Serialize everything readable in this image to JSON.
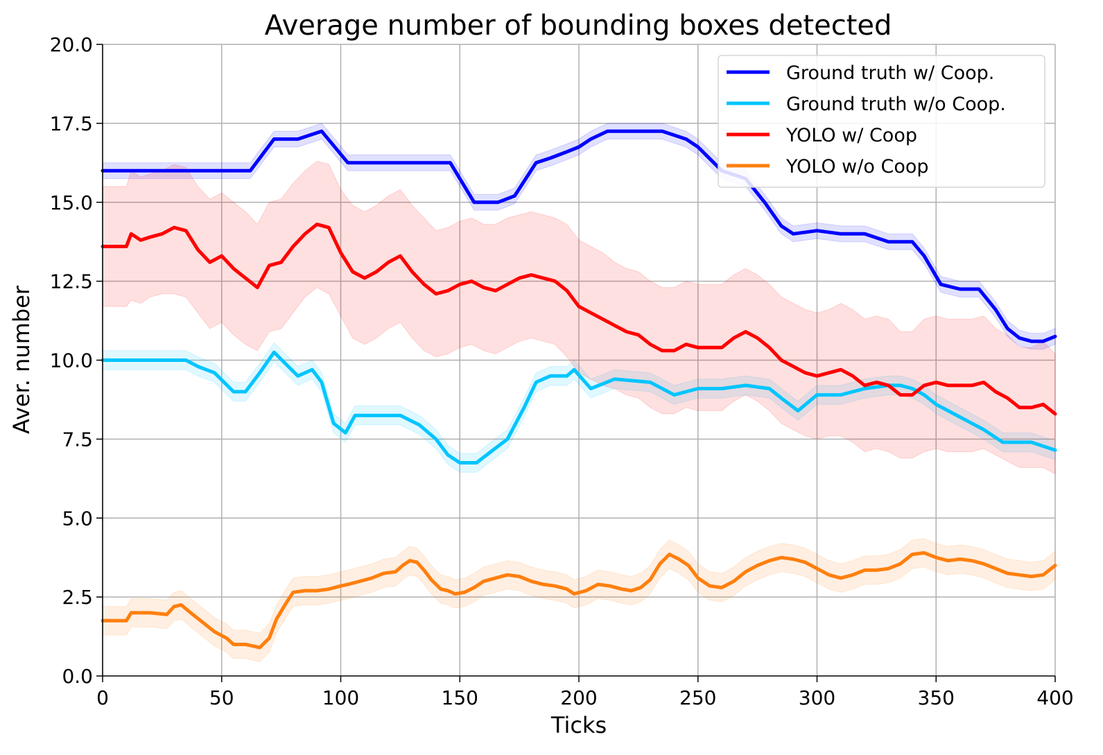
{
  "chart_data": {
    "type": "line",
    "title": "Average number of bounding boxes detected",
    "xlabel": "Ticks",
    "ylabel": "Aver. number",
    "xlim": [
      0,
      400
    ],
    "ylim": [
      0,
      20
    ],
    "xticks": [
      0,
      50,
      100,
      150,
      200,
      250,
      300,
      350,
      400
    ],
    "yticks": [
      0,
      2.5,
      5,
      7.5,
      10,
      12.5,
      15,
      17.5,
      20
    ],
    "xtick_labels": [
      "0",
      "50",
      "100",
      "150",
      "200",
      "250",
      "300",
      "350",
      "400"
    ],
    "ytick_labels": [
      "0.0",
      "2.5",
      "5.0",
      "7.5",
      "10.0",
      "12.5",
      "15.0",
      "17.5",
      "20.0"
    ],
    "grid": true,
    "legend_position": "top-right",
    "series": [
      {
        "name": "Ground truth w/ Coop.",
        "color": "#0000ff",
        "x": [
          0,
          62,
          72,
          82,
          92,
          103,
          146,
          156,
          166,
          173,
          182,
          188,
          195,
          200,
          205,
          212,
          235,
          245,
          250,
          260,
          270,
          278,
          285,
          290,
          300,
          310,
          320,
          330,
          340,
          345,
          352,
          360,
          368,
          375,
          380,
          385,
          390,
          395,
          400
        ],
        "y": [
          16,
          16,
          17,
          17,
          17.25,
          16.25,
          16.25,
          15,
          15,
          15.2,
          16.25,
          16.4,
          16.6,
          16.75,
          17,
          17.25,
          17.25,
          17,
          16.75,
          16,
          15.75,
          15,
          14.25,
          14,
          14.1,
          14,
          14,
          13.75,
          13.75,
          13.3,
          12.4,
          12.25,
          12.25,
          11.6,
          11,
          10.7,
          10.6,
          10.6,
          10.75
        ],
        "band": 0.25
      },
      {
        "name": "Ground truth w/o Coop.",
        "color": "#00c5ff",
        "x": [
          0,
          35,
          40,
          47,
          55,
          60,
          66,
          72,
          78,
          82,
          88,
          92,
          97,
          102,
          106,
          125,
          133,
          140,
          145,
          150,
          157,
          163,
          170,
          177,
          182,
          188,
          195,
          198,
          205,
          215,
          230,
          240,
          250,
          260,
          270,
          280,
          285,
          292,
          300,
          310,
          320,
          330,
          335,
          340,
          345,
          350,
          360,
          370,
          378,
          390,
          400
        ],
        "y": [
          10,
          10,
          9.8,
          9.6,
          9,
          9,
          9.6,
          10.25,
          9.8,
          9.5,
          9.7,
          9.3,
          8,
          7.7,
          8.25,
          8.25,
          7.95,
          7.5,
          7,
          6.75,
          6.75,
          7.1,
          7.5,
          8.5,
          9.3,
          9.5,
          9.5,
          9.7,
          9.1,
          9.4,
          9.3,
          8.9,
          9.1,
          9.1,
          9.2,
          9.1,
          8.8,
          8.4,
          8.9,
          8.9,
          9.1,
          9.2,
          9.2,
          9.1,
          8.9,
          8.6,
          8.2,
          7.8,
          7.4,
          7.4,
          7.15
        ],
        "band": 0.3
      },
      {
        "name": "YOLO w/ Coop",
        "color": "#ff0000",
        "x": [
          0,
          10,
          12,
          16,
          20,
          25,
          30,
          35,
          40,
          45,
          50,
          55,
          60,
          65,
          70,
          75,
          80,
          85,
          90,
          95,
          100,
          105,
          110,
          115,
          120,
          125,
          130,
          135,
          140,
          145,
          150,
          155,
          160,
          165,
          170,
          175,
          180,
          185,
          190,
          195,
          200,
          205,
          210,
          215,
          220,
          225,
          230,
          235,
          240,
          245,
          250,
          255,
          260,
          265,
          270,
          275,
          280,
          285,
          290,
          295,
          300,
          305,
          310,
          315,
          320,
          325,
          330,
          335,
          340,
          345,
          350,
          355,
          360,
          365,
          370,
          375,
          380,
          385,
          390,
          395,
          400
        ],
        "y": [
          13.6,
          13.6,
          14,
          13.8,
          13.9,
          14,
          14.2,
          14.1,
          13.5,
          13.1,
          13.3,
          12.9,
          12.6,
          12.3,
          13.0,
          13.1,
          13.6,
          14.0,
          14.3,
          14.2,
          13.4,
          12.8,
          12.6,
          12.8,
          13.1,
          13.3,
          12.8,
          12.4,
          12.1,
          12.2,
          12.4,
          12.5,
          12.3,
          12.2,
          12.4,
          12.6,
          12.7,
          12.6,
          12.5,
          12.2,
          11.7,
          11.5,
          11.3,
          11.1,
          10.9,
          10.8,
          10.5,
          10.3,
          10.3,
          10.5,
          10.4,
          10.4,
          10.4,
          10.7,
          10.9,
          10.7,
          10.4,
          10.0,
          9.8,
          9.6,
          9.5,
          9.6,
          9.7,
          9.5,
          9.2,
          9.3,
          9.2,
          8.9,
          8.9,
          9.2,
          9.3,
          9.2,
          9.2,
          9.2,
          9.3,
          9.0,
          8.8,
          8.5,
          8.5,
          8.6,
          8.3
        ],
        "band_low": [
          11.7,
          11.7,
          11.9,
          11.8,
          12.0,
          12.1,
          12.1,
          12.0,
          11.5,
          11.0,
          11.2,
          10.8,
          10.5,
          10.3,
          10.9,
          11.0,
          11.5,
          12.0,
          12.3,
          12.1,
          11.4,
          10.7,
          10.5,
          10.7,
          11.0,
          11.2,
          10.7,
          10.3,
          10.1,
          10.2,
          10.4,
          10.5,
          10.3,
          10.2,
          10.4,
          10.6,
          10.7,
          10.6,
          10.5,
          10.1,
          9.6,
          9.4,
          9.2,
          9.1,
          8.9,
          8.8,
          8.5,
          8.3,
          8.3,
          8.5,
          8.4,
          8.4,
          8.4,
          8.7,
          8.9,
          8.7,
          8.4,
          8.0,
          7.8,
          7.6,
          7.5,
          7.6,
          7.6,
          7.4,
          7.1,
          7.2,
          7.1,
          6.9,
          6.9,
          7.1,
          7.2,
          7.1,
          7.1,
          7.1,
          7.2,
          7.0,
          6.8,
          6.6,
          6.6,
          6.6,
          6.4
        ],
        "band_high": [
          15.5,
          15.5,
          16.0,
          15.8,
          15.9,
          16.0,
          16.2,
          16.1,
          15.5,
          15.1,
          15.3,
          15.0,
          14.7,
          14.3,
          15.0,
          15.1,
          15.6,
          16.0,
          16.3,
          16.2,
          15.4,
          14.9,
          14.7,
          14.9,
          15.2,
          15.4,
          14.9,
          14.5,
          14.1,
          14.2,
          14.4,
          14.5,
          14.3,
          14.3,
          14.5,
          14.6,
          14.7,
          14.6,
          14.5,
          14.3,
          13.8,
          13.6,
          13.4,
          13.1,
          12.9,
          12.8,
          12.5,
          12.3,
          12.3,
          12.5,
          12.4,
          12.4,
          12.4,
          12.7,
          12.9,
          12.7,
          12.4,
          12.0,
          11.8,
          11.6,
          11.5,
          11.6,
          11.8,
          11.6,
          11.3,
          11.4,
          11.3,
          10.9,
          10.9,
          11.3,
          11.4,
          11.3,
          11.3,
          11.3,
          11.4,
          11.0,
          10.8,
          10.4,
          10.4,
          10.6,
          10.2
        ]
      },
      {
        "name": "YOLO w/o Coop",
        "color": "#ff7f0e",
        "x": [
          0,
          10,
          12,
          20,
          27,
          30,
          33,
          37,
          42,
          47,
          52,
          55,
          60,
          63,
          66,
          70,
          73,
          77,
          80,
          85,
          90,
          95,
          100,
          103,
          108,
          113,
          118,
          123,
          126,
          129,
          132,
          135,
          138,
          142,
          145,
          148,
          152,
          156,
          160,
          165,
          170,
          175,
          180,
          185,
          190,
          195,
          198,
          203,
          208,
          213,
          218,
          222,
          226,
          230,
          234,
          238,
          242,
          246,
          250,
          255,
          260,
          265,
          270,
          275,
          280,
          285,
          290,
          295,
          300,
          305,
          310,
          315,
          320,
          325,
          330,
          335,
          340,
          345,
          350,
          355,
          360,
          365,
          370,
          375,
          380,
          385,
          390,
          395,
          400
        ],
        "y": [
          1.75,
          1.75,
          2.0,
          2.0,
          1.95,
          2.2,
          2.25,
          2.0,
          1.7,
          1.4,
          1.2,
          1.0,
          1.0,
          0.95,
          0.9,
          1.2,
          1.8,
          2.3,
          2.65,
          2.7,
          2.7,
          2.75,
          2.85,
          2.9,
          3.0,
          3.1,
          3.25,
          3.3,
          3.5,
          3.65,
          3.6,
          3.35,
          3.05,
          2.75,
          2.7,
          2.6,
          2.65,
          2.8,
          3.0,
          3.1,
          3.2,
          3.15,
          3.0,
          2.9,
          2.85,
          2.75,
          2.6,
          2.7,
          2.9,
          2.85,
          2.75,
          2.7,
          2.8,
          3.05,
          3.55,
          3.85,
          3.7,
          3.5,
          3.1,
          2.85,
          2.8,
          3.0,
          3.3,
          3.5,
          3.65,
          3.75,
          3.7,
          3.6,
          3.4,
          3.2,
          3.1,
          3.2,
          3.35,
          3.35,
          3.4,
          3.55,
          3.85,
          3.9,
          3.75,
          3.65,
          3.7,
          3.65,
          3.55,
          3.4,
          3.25,
          3.2,
          3.15,
          3.2,
          3.5
        ],
        "band": 0.45
      }
    ]
  }
}
